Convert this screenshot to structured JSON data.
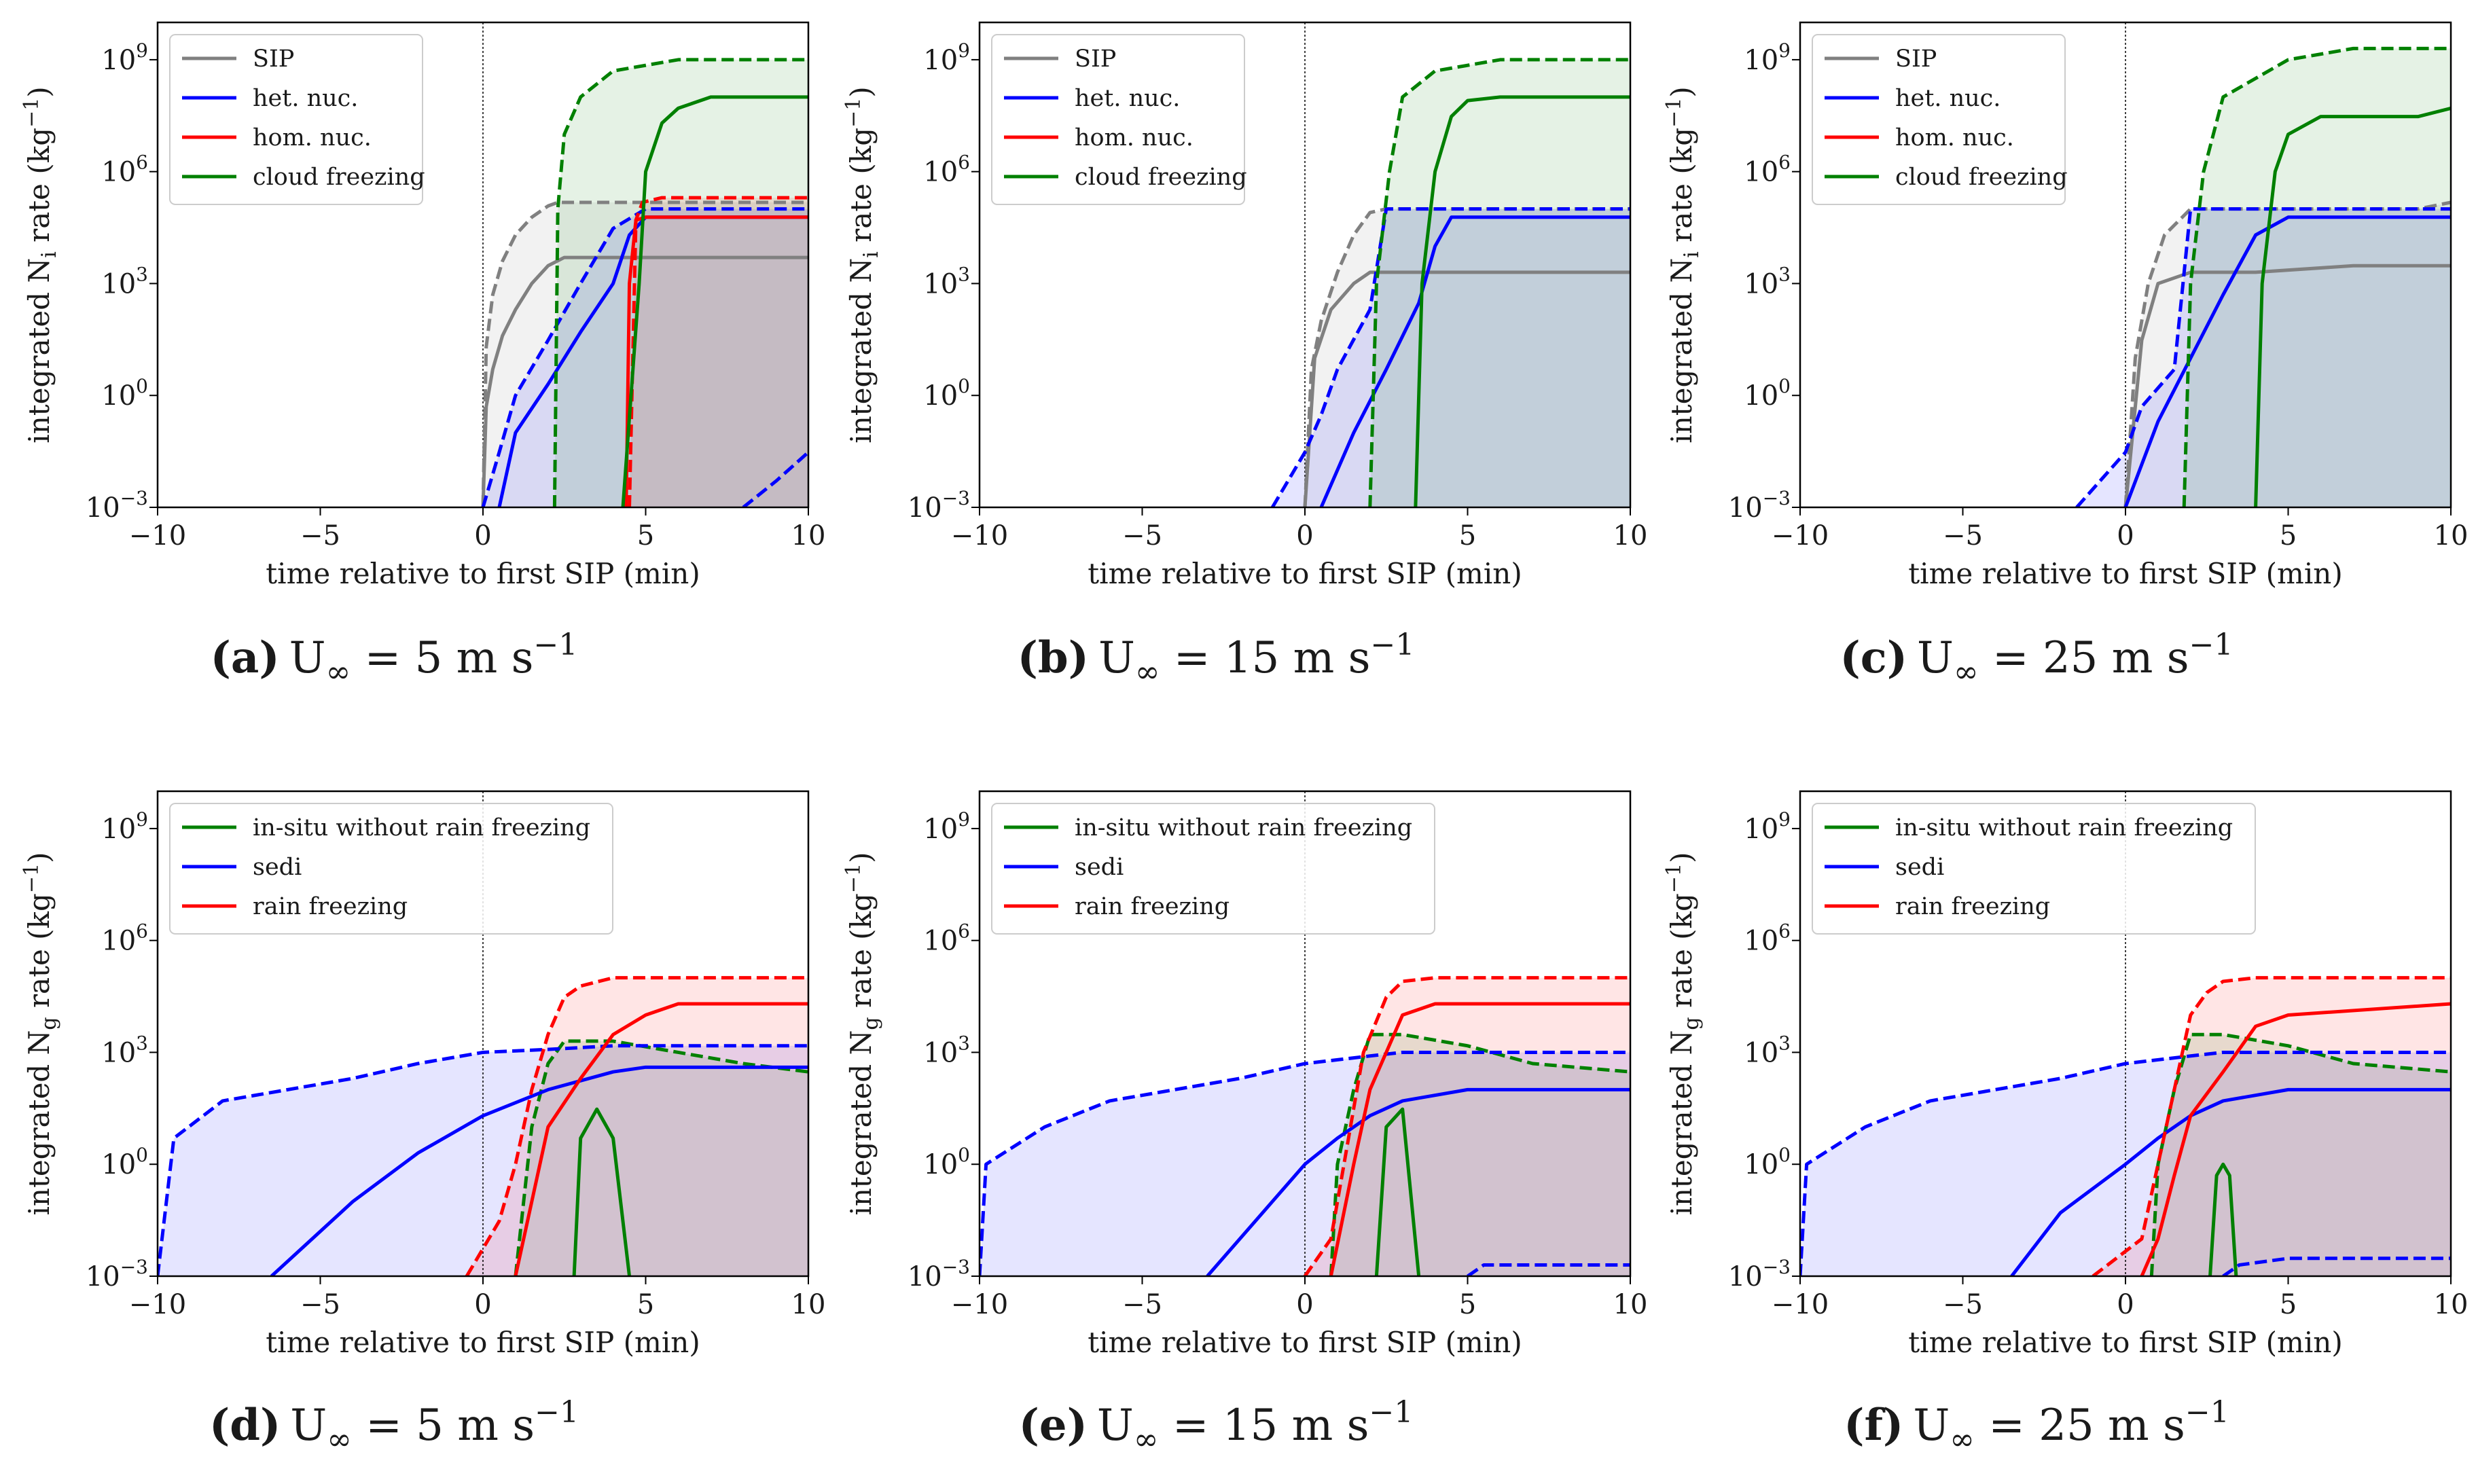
{
  "figure": {
    "xlabel": "time relative to first SIP (min)",
    "x_ticks": [
      "−10",
      "−5",
      "0",
      "5",
      "10"
    ],
    "y_ticks": [
      {
        "base": "10",
        "exp": "9"
      },
      {
        "base": "10",
        "exp": "6"
      },
      {
        "base": "10",
        "exp": "3"
      },
      {
        "base": "10",
        "exp": "0"
      },
      {
        "base": "10",
        "exp": "−3"
      }
    ],
    "ylabel_ni": {
      "pre": "integrated N",
      "sub": "i",
      "mid": " rate (kg",
      "sup": "−1",
      "post": ")"
    },
    "ylabel_ng": {
      "pre": "integrated N",
      "sub": "g",
      "mid": " rate (kg",
      "sup": "−1",
      "post": ")"
    }
  },
  "colors": {
    "sip": "#808080",
    "het": "#0000ff",
    "hom": "#ff0000",
    "cloud": "#008000",
    "insitu": "#008000",
    "sedi": "#0000ff",
    "rain": "#ff0000"
  },
  "legend_top": [
    {
      "key": "sip",
      "label": "SIP"
    },
    {
      "key": "het",
      "label": "het. nuc."
    },
    {
      "key": "hom",
      "label": "hom. nuc."
    },
    {
      "key": "cloud",
      "label": "cloud freezing"
    }
  ],
  "legend_bottom": [
    {
      "key": "insitu",
      "label": "in-situ without rain freezing"
    },
    {
      "key": "sedi",
      "label": "sedi"
    },
    {
      "key": "rain",
      "label": "rain freezing"
    }
  ],
  "captions": [
    {
      "label": "(a)",
      "u": "U",
      "usub": "∞",
      "eq": " = 5 m s",
      "sup": "−1"
    },
    {
      "label": "(b)",
      "u": "U",
      "usub": "∞",
      "eq": " = 15 m s",
      "sup": "−1"
    },
    {
      "label": "(c)",
      "u": "U",
      "usub": "∞",
      "eq": " = 25 m s",
      "sup": "−1"
    },
    {
      "label": "(d)",
      "u": "U",
      "usub": "∞",
      "eq": " = 5 m s",
      "sup": "−1"
    },
    {
      "label": "(e)",
      "u": "U",
      "usub": "∞",
      "eq": " = 15 m s",
      "sup": "−1"
    },
    {
      "label": "(f)",
      "u": "U",
      "usub": "∞",
      "eq": " = 25 m s",
      "sup": "−1"
    }
  ],
  "chart_data": [
    {
      "panel": "a",
      "type": "line",
      "y_scale": "log",
      "xlim": [
        -10,
        10
      ],
      "ylim": [
        0.001,
        10000000000
      ],
      "series": [
        {
          "key": "sip",
          "style": "solid",
          "x": [
            0,
            0.1,
            0.3,
            0.6,
            1,
            1.5,
            2,
            2.5,
            10
          ],
          "y": [
            0.001,
            0.5,
            5,
            40,
            200,
            1000,
            3000,
            5000,
            5000
          ]
        },
        {
          "key": "sip",
          "style": "dashed",
          "fill": true,
          "x": [
            0,
            0.1,
            0.3,
            0.6,
            1,
            1.5,
            2,
            2.3,
            10
          ],
          "y": [
            0.001,
            20,
            500,
            4000,
            20000,
            60000,
            120000,
            150000,
            150000
          ]
        },
        {
          "key": "het",
          "style": "solid",
          "x": [
            0.5,
            1,
            2,
            3,
            4,
            4.5,
            5,
            10
          ],
          "y": [
            0.001,
            0.1,
            2,
            50,
            1000,
            20000,
            60000,
            60000
          ]
        },
        {
          "key": "het",
          "style": "dashed",
          "fill": true,
          "x": [
            0,
            0.5,
            1,
            2,
            3,
            4,
            5,
            10
          ],
          "y": [
            0.001,
            0.03,
            1,
            30,
            1000,
            30000,
            100000,
            100000
          ]
        },
        {
          "key": "het",
          "style": "dashed",
          "x": [
            8,
            9,
            10
          ],
          "y": [
            0.001,
            0.005,
            0.03
          ]
        },
        {
          "key": "hom",
          "style": "solid",
          "x": [
            4.4,
            4.5,
            4.7,
            5,
            10
          ],
          "y": [
            0.001,
            1000,
            50000,
            60000,
            60000
          ]
        },
        {
          "key": "hom",
          "style": "dashed",
          "fill": true,
          "x": [
            4.5,
            4.7,
            4.9,
            5.5,
            10
          ],
          "y": [
            0.001,
            50000,
            150000,
            200000,
            200000
          ]
        },
        {
          "key": "cloud",
          "style": "solid",
          "x": [
            4.3,
            4.8,
            5,
            5.5,
            6,
            7,
            10
          ],
          "y": [
            0.001,
            1000,
            1000000,
            20000000,
            50000000,
            100000000,
            100000000
          ]
        },
        {
          "key": "cloud",
          "style": "dashed",
          "fill": true,
          "x": [
            2.2,
            2.3,
            2.5,
            3,
            4,
            6,
            10
          ],
          "y": [
            0.001,
            100000,
            10000000,
            100000000,
            500000000,
            1000000000,
            1000000000
          ]
        }
      ],
      "vline_x": 0,
      "legend": "upper left"
    },
    {
      "panel": "b",
      "type": "line",
      "y_scale": "log",
      "xlim": [
        -10,
        10
      ],
      "ylim": [
        0.001,
        10000000000
      ],
      "series": [
        {
          "key": "sip",
          "style": "solid",
          "x": [
            0,
            0.3,
            0.8,
            1.5,
            2,
            2.5,
            10
          ],
          "y": [
            0.001,
            10,
            200,
            1000,
            2000,
            2000,
            2000
          ]
        },
        {
          "key": "sip",
          "style": "dashed",
          "fill": true,
          "x": [
            0,
            0.2,
            0.5,
            1,
            1.5,
            2,
            2.5,
            10
          ],
          "y": [
            0.001,
            5,
            100,
            2000,
            20000,
            80000,
            100000,
            100000
          ]
        },
        {
          "key": "het",
          "style": "solid",
          "x": [
            0.5,
            1.5,
            2.5,
            3.5,
            4,
            4.5,
            10
          ],
          "y": [
            0.001,
            0.1,
            5,
            300,
            10000,
            60000,
            60000
          ]
        },
        {
          "key": "het",
          "style": "dashed",
          "fill": true,
          "x": [
            -1,
            0,
            0.5,
            1,
            2,
            2.5,
            10
          ],
          "y": [
            0.001,
            0.03,
            0.3,
            5,
            200,
            100000,
            100000
          ]
        },
        {
          "key": "cloud",
          "style": "solid",
          "x": [
            3.4,
            3.6,
            4,
            4.5,
            5,
            6,
            10
          ],
          "y": [
            0.001,
            1000,
            1000000,
            30000000,
            80000000,
            100000000,
            100000000
          ]
        },
        {
          "key": "cloud",
          "style": "dashed",
          "fill": true,
          "x": [
            2,
            2.2,
            2.6,
            3,
            4,
            6,
            10
          ],
          "y": [
            0.001,
            1000,
            1000000,
            100000000,
            500000000,
            1000000000,
            1000000000
          ]
        }
      ],
      "vline_x": 0,
      "legend": "upper left"
    },
    {
      "panel": "c",
      "type": "line",
      "y_scale": "log",
      "xlim": [
        -10,
        10
      ],
      "ylim": [
        0.001,
        10000000000
      ],
      "series": [
        {
          "key": "sip",
          "style": "solid",
          "x": [
            0,
            0.5,
            1,
            2,
            4,
            7,
            10
          ],
          "y": [
            0.001,
            30,
            1000,
            2000,
            2000,
            3000,
            3000
          ]
        },
        {
          "key": "sip",
          "style": "dashed",
          "fill": true,
          "x": [
            0,
            0.3,
            0.7,
            1.2,
            2,
            9,
            10
          ],
          "y": [
            0.001,
            10,
            1000,
            20000,
            100000,
            100000,
            150000
          ]
        },
        {
          "key": "het",
          "style": "solid",
          "x": [
            0,
            1,
            2,
            3,
            4,
            5,
            10
          ],
          "y": [
            0.001,
            0.2,
            10,
            500,
            20000,
            60000,
            60000
          ]
        },
        {
          "key": "het",
          "style": "dashed",
          "fill": true,
          "x": [
            -1.5,
            0,
            0.5,
            1.5,
            2,
            5,
            10
          ],
          "y": [
            0.001,
            0.03,
            0.5,
            5,
            100000,
            100000,
            100000
          ]
        },
        {
          "key": "cloud",
          "style": "solid",
          "x": [
            4,
            4.2,
            4.6,
            5,
            6,
            9,
            10
          ],
          "y": [
            0.001,
            1000,
            1000000,
            10000000,
            30000000,
            30000000,
            50000000
          ]
        },
        {
          "key": "cloud",
          "style": "dashed",
          "fill": true,
          "x": [
            1.8,
            2,
            2.4,
            3,
            5,
            7,
            10
          ],
          "y": [
            0.001,
            1000,
            1000000,
            100000000,
            1000000000,
            2000000000,
            2000000000
          ]
        }
      ],
      "vline_x": 0,
      "legend": "upper left"
    },
    {
      "panel": "d",
      "type": "line",
      "y_scale": "log",
      "xlim": [
        -10,
        10
      ],
      "ylim": [
        0.001,
        10000000000
      ],
      "series": [
        {
          "key": "insitu",
          "style": "solid",
          "x": [
            2.8,
            3,
            3.5,
            4,
            4.5
          ],
          "y": [
            0.001,
            5,
            30,
            5,
            0.001
          ]
        },
        {
          "key": "insitu",
          "style": "dashed",
          "fill": true,
          "x": [
            1,
            1.5,
            2,
            2.5,
            3,
            4,
            6,
            8,
            10
          ],
          "y": [
            0.001,
            10,
            500,
            2000,
            2000,
            2000,
            1000,
            500,
            300
          ]
        },
        {
          "key": "sedi",
          "style": "solid",
          "x": [
            -6.5,
            -4,
            -2,
            0,
            2,
            4,
            5,
            10
          ],
          "y": [
            0.001,
            0.1,
            2,
            20,
            100,
            300,
            400,
            400
          ]
        },
        {
          "key": "sedi",
          "style": "dashed",
          "fill": true,
          "x": [
            -10,
            -9.5,
            -8,
            -6,
            -4,
            -2,
            0,
            2,
            4,
            10
          ],
          "y": [
            0.001,
            5,
            50,
            100,
            200,
            500,
            1000,
            1200,
            1500,
            1500
          ]
        },
        {
          "key": "rain",
          "style": "solid",
          "x": [
            1,
            1.5,
            2,
            3,
            4,
            5,
            6,
            10
          ],
          "y": [
            0.001,
            0.1,
            10,
            200,
            3000,
            10000,
            20000,
            20000
          ]
        },
        {
          "key": "rain",
          "style": "dashed",
          "fill": true,
          "x": [
            -0.5,
            0.5,
            1,
            1.5,
            2,
            2.5,
            3,
            4,
            5,
            10
          ],
          "y": [
            0.001,
            0.03,
            1,
            100,
            3000,
            30000,
            60000,
            100000,
            100000,
            100000
          ]
        }
      ],
      "vline_x": 0,
      "legend": "upper left"
    },
    {
      "panel": "e",
      "type": "line",
      "y_scale": "log",
      "xlim": [
        -10,
        10
      ],
      "ylim": [
        0.001,
        10000000000
      ],
      "series": [
        {
          "key": "insitu",
          "style": "solid",
          "x": [
            2.2,
            2.5,
            3,
            3.5
          ],
          "y": [
            0.001,
            10,
            30,
            0.001
          ]
        },
        {
          "key": "insitu",
          "style": "dashed",
          "fill": true,
          "x": [
            0.8,
            1,
            1.5,
            2,
            3,
            5,
            7,
            10
          ],
          "y": [
            0.001,
            1,
            100,
            3000,
            3000,
            1500,
            500,
            300
          ]
        },
        {
          "key": "sedi",
          "style": "solid",
          "x": [
            -3,
            -1,
            0,
            1,
            2,
            3,
            5,
            10
          ],
          "y": [
            0.001,
            0.1,
            1,
            5,
            20,
            50,
            100,
            100
          ]
        },
        {
          "key": "sedi",
          "style": "dashed",
          "fill": true,
          "x": [
            -10,
            -9.8,
            -8,
            -6,
            -4,
            -2,
            0,
            2,
            3,
            10
          ],
          "y": [
            0.001,
            1,
            10,
            50,
            100,
            200,
            500,
            800,
            1000,
            1000
          ]
        },
        {
          "key": "sedi",
          "style": "dashed",
          "x": [
            5,
            5.5,
            10
          ],
          "y": [
            0.001,
            0.002,
            0.002
          ]
        },
        {
          "key": "rain",
          "style": "solid",
          "x": [
            0.8,
            1.5,
            2,
            2.5,
            3,
            4,
            10
          ],
          "y": [
            0.001,
            1,
            100,
            1000,
            10000,
            20000,
            20000
          ]
        },
        {
          "key": "rain",
          "style": "dashed",
          "fill": true,
          "x": [
            0,
            0.8,
            1.2,
            1.8,
            2.5,
            3,
            4,
            10
          ],
          "y": [
            0.001,
            0.01,
            1,
            1000,
            30000,
            80000,
            100000,
            100000
          ]
        }
      ],
      "vline_x": 0,
      "legend": "upper left"
    },
    {
      "panel": "f",
      "type": "line",
      "y_scale": "log",
      "xlim": [
        -10,
        10
      ],
      "ylim": [
        0.001,
        10000000000
      ],
      "series": [
        {
          "key": "insitu",
          "style": "solid",
          "x": [
            2.6,
            2.8,
            3,
            3.2,
            3.4
          ],
          "y": [
            0.001,
            0.5,
            1,
            0.5,
            0.001
          ]
        },
        {
          "key": "insitu",
          "style": "dashed",
          "fill": true,
          "x": [
            0.8,
            1,
            1.5,
            2,
            3,
            5,
            7,
            10
          ],
          "y": [
            0.001,
            1,
            100,
            3000,
            3000,
            1500,
            500,
            300
          ]
        },
        {
          "key": "sedi",
          "style": "solid",
          "x": [
            -3.5,
            -2,
            0,
            1,
            2,
            3,
            5,
            10
          ],
          "y": [
            0.001,
            0.05,
            1,
            5,
            20,
            50,
            100,
            100
          ]
        },
        {
          "key": "sedi",
          "style": "dashed",
          "fill": true,
          "x": [
            -10,
            -9.8,
            -8,
            -6,
            -4,
            -2,
            0,
            2,
            3,
            10
          ],
          "y": [
            0.001,
            1,
            10,
            50,
            100,
            200,
            500,
            800,
            1000,
            1000
          ]
        },
        {
          "key": "sedi",
          "style": "dashed",
          "x": [
            3,
            3.5,
            5,
            10
          ],
          "y": [
            0.001,
            0.002,
            0.003,
            0.003
          ]
        },
        {
          "key": "rain",
          "style": "solid",
          "x": [
            0.5,
            1,
            1.5,
            2,
            3,
            4,
            5,
            10
          ],
          "y": [
            0.001,
            0.01,
            0.5,
            20,
            300,
            5000,
            10000,
            20000
          ]
        },
        {
          "key": "rain",
          "style": "dashed",
          "fill": true,
          "x": [
            -1,
            0.5,
            1,
            1.5,
            2,
            2.5,
            3,
            4,
            10
          ],
          "y": [
            0.001,
            0.01,
            1,
            100,
            10000,
            40000,
            80000,
            100000,
            100000
          ]
        }
      ],
      "vline_x": 0,
      "legend": "upper left"
    }
  ]
}
